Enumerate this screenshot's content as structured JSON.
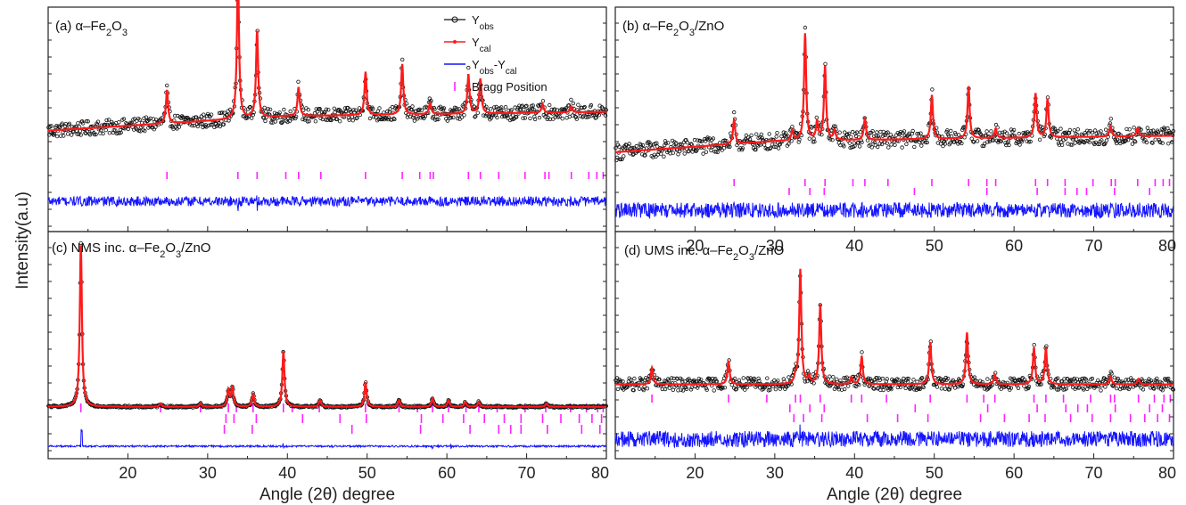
{
  "figure": {
    "ylabel": "Intensity(a.u)",
    "xlabel_left": "Angle (2θ) degree",
    "xlabel_right": "Angle (2θ) degree"
  },
  "colors": {
    "obs": "#111111",
    "cal": "#ff1a1a",
    "diff": "#1414ff",
    "bragg": "#ff22ff",
    "axis": "#222222"
  },
  "legend": {
    "placement": "top-right of panel (a)",
    "entries": [
      {
        "label": "Yobs",
        "main": "Y",
        "sub": "obs",
        "tail": "",
        "tailsub": "",
        "style": "circle-line",
        "color": "#111111"
      },
      {
        "label": "Ycal",
        "main": "Y",
        "sub": "cal",
        "tail": "",
        "tailsub": "",
        "style": "dot-line",
        "color": "#ff1a1a"
      },
      {
        "label": "Yobs-Ycal",
        "main": "Y",
        "sub": "obs",
        "tail": "-Y",
        "tailsub": "cal",
        "style": "line",
        "color": "#1414ff"
      },
      {
        "label": "Bragg Position",
        "main": "Bragg Position",
        "sub": "",
        "tail": "",
        "tailsub": "",
        "style": "tick",
        "color": "#ff22ff"
      }
    ]
  },
  "chart_data": [
    {
      "type": "line",
      "panel": "a",
      "title": "(a) α–Fe2O3",
      "title_parts": {
        "pre": "(a)  α–Fe",
        "s1": "2",
        "mid": "O",
        "s2": "3",
        "post": ""
      },
      "xlim": [
        10,
        80
      ],
      "xticks": [
        20,
        30,
        40,
        50,
        60,
        70,
        80
      ],
      "show_tick_labels": false,
      "background": {
        "start": 0.28,
        "mid": 0.38,
        "mid_x": 40,
        "end": 0.41
      },
      "peaks": [
        [
          24.9,
          0.23
        ],
        [
          33.8,
          1.0
        ],
        [
          36.2,
          0.6
        ],
        [
          41.4,
          0.2
        ],
        [
          49.8,
          0.3
        ],
        [
          54.4,
          0.35
        ],
        [
          57.9,
          0.08
        ],
        [
          62.7,
          0.27
        ],
        [
          64.2,
          0.24
        ],
        [
          72.0,
          0.06
        ],
        [
          75.6,
          0.04
        ]
      ],
      "noise": 0.05,
      "diff_noise": 0.02,
      "diff_spikes": [
        [
          33.8,
          0.035
        ],
        [
          36.2,
          0.02
        ]
      ],
      "bragg_rows": [
        [
          24.9,
          33.8,
          36.2,
          39.8,
          41.4,
          44.2,
          49.8,
          54.4,
          56.6,
          57.9,
          58.3,
          62.7,
          64.2,
          66.5,
          69.8,
          72.3,
          72.8,
          75.6,
          77.8,
          78.8,
          79.6
        ]
      ],
      "series": [
        {
          "name": "Yobs",
          "role": "observed"
        },
        {
          "name": "Ycal",
          "role": "calculated"
        },
        {
          "name": "Yobs-Ycal",
          "role": "difference"
        },
        {
          "name": "Bragg Position",
          "role": "reflections"
        }
      ]
    },
    {
      "type": "line",
      "panel": "b",
      "title": "(b) α–Fe2O3/ZnO",
      "title_parts": {
        "pre": "(b)  α–Fe",
        "s1": "2",
        "mid": "O",
        "s2": "3",
        "post": "/ZnO"
      },
      "xlim": [
        10,
        80
      ],
      "xticks": [
        20,
        30,
        40,
        50,
        60,
        70,
        80
      ],
      "show_tick_labels": true,
      "background": {
        "start": 0.15,
        "mid": 0.23,
        "mid_x": 30,
        "end": 0.27
      },
      "peaks": [
        [
          24.9,
          0.18
        ],
        [
          32.2,
          0.07
        ],
        [
          33.8,
          0.78
        ],
        [
          35.3,
          0.13
        ],
        [
          36.3,
          0.54
        ],
        [
          37.5,
          0.07
        ],
        [
          41.3,
          0.16
        ],
        [
          49.7,
          0.32
        ],
        [
          54.3,
          0.38
        ],
        [
          57.7,
          0.07
        ],
        [
          62.7,
          0.32
        ],
        [
          64.2,
          0.28
        ],
        [
          72.1,
          0.08
        ],
        [
          75.5,
          0.06
        ]
      ],
      "noise": 0.06,
      "diff_noise": 0.032,
      "diff_spikes": [],
      "bragg_rows": [
        [
          24.9,
          33.8,
          36.3,
          39.8,
          41.3,
          44.2,
          49.7,
          54.3,
          56.6,
          57.7,
          62.7,
          64.2,
          66.4,
          69.9,
          72.2,
          72.7,
          75.5,
          77.7,
          78.7,
          79.5
        ],
        [
          31.8,
          34.4,
          36.2,
          47.5,
          56.6,
          62.9,
          66.4,
          67.9,
          69.1,
          72.6,
          77.0
        ]
      ],
      "series": [
        {
          "name": "Yobs",
          "role": "observed"
        },
        {
          "name": "Ycal",
          "role": "calculated"
        },
        {
          "name": "Yobs-Ycal",
          "role": "difference"
        },
        {
          "name": "Bragg Position",
          "role": "reflections"
        }
      ]
    },
    {
      "type": "line",
      "panel": "c",
      "title": "(c) NMS inc. α–Fe2O3/ZnO",
      "title_parts": {
        "pre": "(c)  NMS inc. α–Fe",
        "s1": "2",
        "mid": "O",
        "s2": "3",
        "post": "/ZnO"
      },
      "xlim": [
        10,
        80
      ],
      "xticks": [
        20,
        30,
        40,
        50,
        60,
        70,
        80
      ],
      "show_tick_labels": true,
      "background": {
        "start": 0.045,
        "mid": 0.045,
        "mid_x": 45,
        "end": 0.045
      },
      "peaks": [
        [
          14.1,
          1.0
        ],
        [
          24.1,
          0.02
        ],
        [
          29.1,
          0.02
        ],
        [
          32.6,
          0.1
        ],
        [
          33.1,
          0.12
        ],
        [
          35.7,
          0.08
        ],
        [
          39.5,
          0.34
        ],
        [
          44.1,
          0.04
        ],
        [
          49.8,
          0.15
        ],
        [
          54.0,
          0.04
        ],
        [
          58.2,
          0.05
        ],
        [
          60.2,
          0.04
        ],
        [
          62.3,
          0.03
        ],
        [
          64.0,
          0.03
        ],
        [
          72.5,
          0.02
        ]
      ],
      "noise": 0.006,
      "diff_noise": 0.004,
      "diff_spikes": [
        [
          14.2,
          0.07
        ],
        [
          39.5,
          0.01
        ],
        [
          58.2,
          0.01
        ],
        [
          60.5,
          0.01
        ]
      ],
      "bragg_rows": [
        [
          14.1,
          24.1,
          29.1,
          32.6,
          33.6,
          35.7,
          39.5,
          40.6,
          44.0,
          49.8,
          54.0,
          56.3,
          58.2,
          60.2,
          62.4,
          64.0,
          66.3,
          69.8,
          72.4,
          75.5,
          77.5,
          78.9,
          79.6
        ],
        [
          32.3,
          33.3,
          36.1,
          41.9,
          46.6,
          49.9,
          56.8,
          59.5,
          62.1,
          64.7,
          67.2,
          69.3,
          72.0,
          74.3,
          76.6,
          78.2,
          79.4
        ],
        [
          32.1,
          35.6,
          48.1,
          56.7,
          62.9,
          66.5,
          68.0,
          69.3,
          72.6,
          76.9,
          79.2
        ]
      ],
      "series": [
        {
          "name": "Yobs",
          "role": "observed"
        },
        {
          "name": "Ycal",
          "role": "calculated"
        },
        {
          "name": "Yobs-Ycal",
          "role": "difference"
        },
        {
          "name": "Bragg Position",
          "role": "reflections"
        }
      ]
    },
    {
      "type": "line",
      "panel": "d",
      "title": "(d) UMS inc. α–Fe2O3/ZnO",
      "title_parts": {
        "pre": "(d)  UMS inc. α–Fe",
        "s1": "2",
        "mid": "O",
        "s2": "3",
        "post": "/ZnO"
      },
      "xlim": [
        10,
        80
      ],
      "xticks": [
        20,
        30,
        40,
        50,
        60,
        70,
        80
      ],
      "show_tick_labels": true,
      "background": {
        "start": 0.13,
        "mid": 0.13,
        "mid_x": 45,
        "end": 0.13
      },
      "peaks": [
        [
          14.6,
          0.12
        ],
        [
          24.2,
          0.17
        ],
        [
          32.6,
          0.05
        ],
        [
          33.2,
          0.82
        ],
        [
          34.3,
          0.05
        ],
        [
          35.7,
          0.57
        ],
        [
          39.6,
          0.05
        ],
        [
          40.9,
          0.2
        ],
        [
          49.5,
          0.3
        ],
        [
          54.1,
          0.37
        ],
        [
          57.6,
          0.07
        ],
        [
          62.5,
          0.26
        ],
        [
          64.0,
          0.26
        ],
        [
          72.1,
          0.06
        ],
        [
          75.6,
          0.04
        ]
      ],
      "noise": 0.045,
      "diff_noise": 0.035,
      "diff_spikes": [
        [
          33.2,
          0.03
        ]
      ],
      "bragg_rows": [
        [
          14.6,
          24.2,
          29.0,
          32.6,
          33.2,
          35.7,
          39.6,
          40.9,
          44.0,
          49.5,
          54.1,
          56.2,
          57.6,
          62.5,
          64.0,
          66.2,
          69.6,
          72.1,
          72.6,
          75.6,
          77.6,
          78.8,
          79.6
        ],
        [
          31.9,
          34.4,
          36.2,
          47.6,
          56.7,
          62.9,
          66.5,
          68.0,
          69.2,
          72.7,
          77.0,
          78.6
        ],
        [
          32.4,
          33.6,
          35.9,
          41.6,
          45.4,
          49.2,
          55.8,
          58.8,
          61.9,
          63.9,
          67.1,
          69.8,
          72.1,
          74.6,
          76.4,
          78.0,
          79.5
        ]
      ],
      "series": [
        {
          "name": "Yobs",
          "role": "observed"
        },
        {
          "name": "Ycal",
          "role": "calculated"
        },
        {
          "name": "Yobs-Ycal",
          "role": "difference"
        },
        {
          "name": "Bragg Position",
          "role": "reflections"
        }
      ]
    }
  ]
}
